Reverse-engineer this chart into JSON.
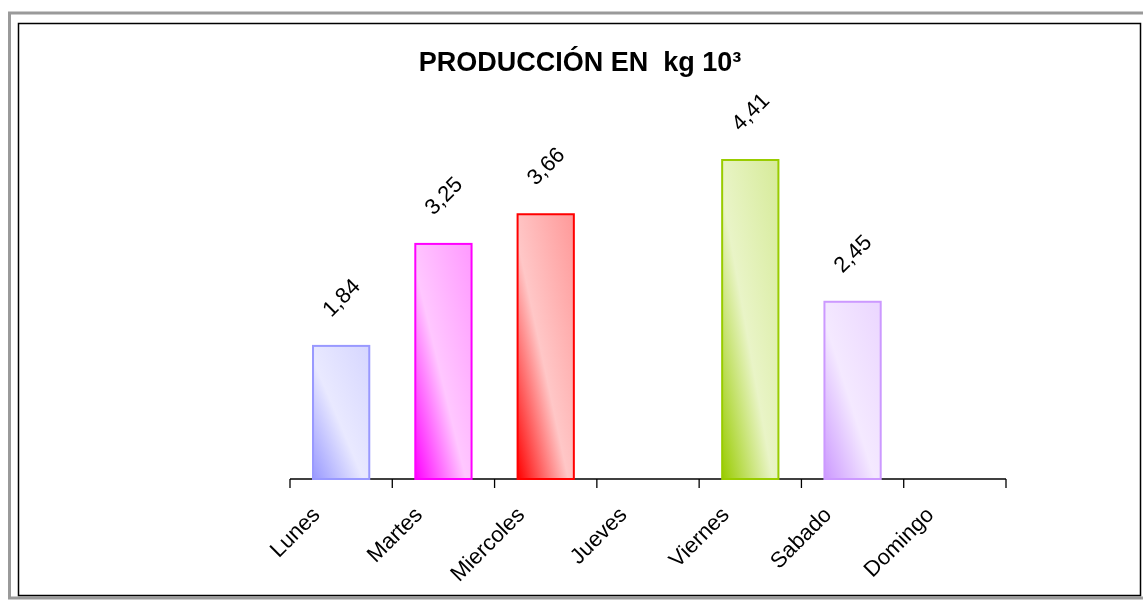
{
  "chart_data": {
    "type": "bar",
    "title": "PRODUCCIÓN EN  kg 10³",
    "categories": [
      "Lunes",
      "Martes",
      "Miercoles",
      "Jueves",
      "Viernes",
      "Sabado",
      "Domingo"
    ],
    "values": [
      1.84,
      3.25,
      3.66,
      null,
      4.41,
      2.45,
      null
    ],
    "colors": [
      "#9999ff",
      "#ff00ff",
      "#ff0000",
      null,
      "#99cc00",
      "#cc99ff",
      null
    ],
    "value_labels": [
      "1,84",
      "3,25",
      "3,66",
      null,
      "4,41",
      "2,45",
      null
    ]
  }
}
